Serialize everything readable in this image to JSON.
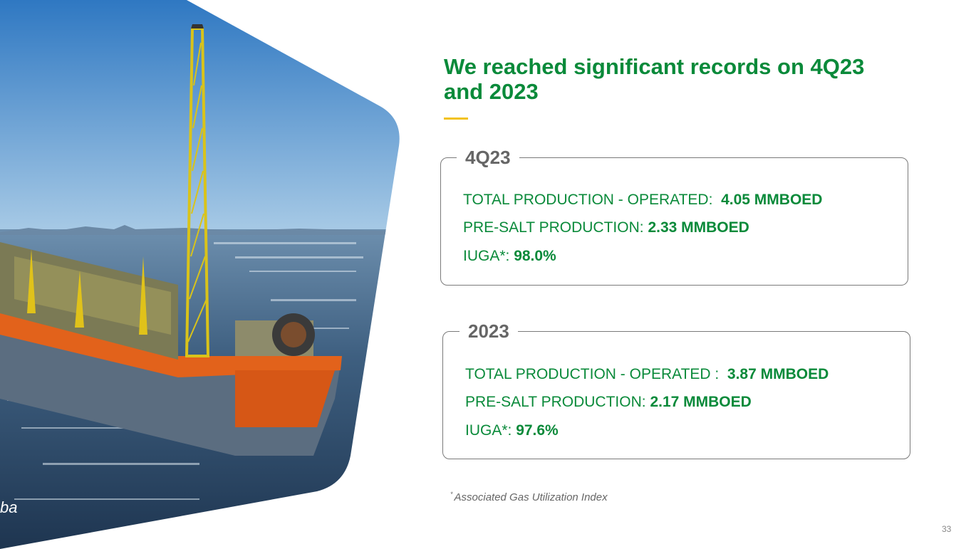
{
  "photo": {
    "caption": "ba",
    "alt": "FPSO"
  },
  "title": "We reached significant records on 4Q23 and 2023",
  "sections": [
    {
      "label": "4Q23",
      "rows": [
        {
          "label": "TOTAL PRODUCTION - OPERATED:  ",
          "value": "4.05 MMBOED"
        },
        {
          "label": "PRE-SALT PRODUCTION: ",
          "value": "2.33 MMBOED"
        },
        {
          "label": "IUGA*: ",
          "value": "98.0%"
        }
      ]
    },
    {
      "label": "2023",
      "rows": [
        {
          "label": "TOTAL PRODUCTION - OPERATED :  ",
          "value": "3.87 MMBOED"
        },
        {
          "label": "PRE-SALT PRODUCTION: ",
          "value": "2.17 MMBOED"
        },
        {
          "label": "IUGA*: ",
          "value": "97.6%"
        }
      ]
    }
  ],
  "footnote": {
    "marker": "*",
    "text": "Associated Gas Utilization Index"
  },
  "page_number": "33",
  "colors": {
    "green": "#0a8a3a",
    "accent": "#f2c21b",
    "sky": "#3f86c9",
    "hull": "#e2621b"
  }
}
